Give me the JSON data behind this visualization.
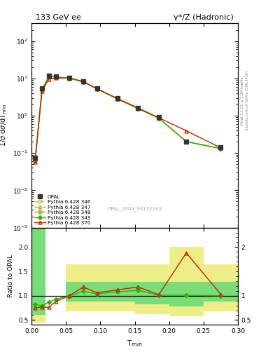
{
  "title_left": "133 GeV ee",
  "title_right": "γ*/Z (Hadronic)",
  "ylabel_main": "1/σ dσ/dT$_{min}$",
  "ylabel_ratio": "Ratio to OPAL",
  "xlabel": "T$_{min}$",
  "watermark": "OPAL_2004_S6132243",
  "right_label_top": "Rivet 3.1.10; ≥ 2.6M events",
  "right_label_bot": "mcplots.cern.ch [arXiv:1306.3436]",
  "opal_x": [
    0.005,
    0.015,
    0.025,
    0.035,
    0.055,
    0.075,
    0.095,
    0.125,
    0.155,
    0.185,
    0.225,
    0.275
  ],
  "opal_y": [
    0.075,
    5.5,
    12.0,
    11.5,
    10.5,
    8.5,
    5.5,
    3.0,
    1.6,
    0.9,
    0.2,
    0.14
  ],
  "mc346_x": [
    0.005,
    0.015,
    0.025,
    0.035,
    0.055,
    0.075,
    0.095,
    0.125,
    0.155,
    0.185,
    0.225,
    0.275
  ],
  "mc346_y": [
    0.065,
    5.0,
    11.5,
    11.0,
    10.2,
    8.2,
    5.3,
    2.85,
    1.58,
    0.87,
    0.205,
    0.133
  ],
  "mc347_x": [
    0.005,
    0.015,
    0.025,
    0.035,
    0.055,
    0.075,
    0.095,
    0.125,
    0.155,
    0.185,
    0.225,
    0.275
  ],
  "mc347_y": [
    0.063,
    4.95,
    11.4,
    10.95,
    10.15,
    8.15,
    5.25,
    2.82,
    1.56,
    0.86,
    0.203,
    0.132
  ],
  "mc348_x": [
    0.005,
    0.015,
    0.025,
    0.035,
    0.055,
    0.075,
    0.095,
    0.125,
    0.155,
    0.185,
    0.225,
    0.275
  ],
  "mc348_y": [
    0.063,
    4.95,
    11.4,
    10.95,
    10.15,
    8.15,
    5.25,
    2.82,
    1.56,
    0.86,
    0.203,
    0.132
  ],
  "mc349_x": [
    0.005,
    0.015,
    0.025,
    0.035,
    0.055,
    0.075,
    0.095,
    0.125,
    0.155,
    0.185,
    0.225,
    0.275
  ],
  "mc349_y": [
    0.062,
    4.9,
    11.35,
    10.9,
    10.1,
    8.1,
    5.22,
    2.8,
    1.55,
    0.855,
    0.202,
    0.131
  ],
  "mc370_x": [
    0.005,
    0.015,
    0.025,
    0.035,
    0.055,
    0.075,
    0.095,
    0.125,
    0.155,
    0.185,
    0.225,
    0.275
  ],
  "mc370_y": [
    0.057,
    4.5,
    9.6,
    10.2,
    10.3,
    8.3,
    5.35,
    2.88,
    1.62,
    0.88,
    0.395,
    0.138
  ],
  "ratio_x": [
    0.005,
    0.015,
    0.025,
    0.035,
    0.055,
    0.075,
    0.095,
    0.125,
    0.155,
    0.185,
    0.225,
    0.275
  ],
  "ratio_mc370": [
    0.75,
    0.77,
    0.76,
    0.88,
    1.0,
    1.18,
    1.06,
    1.12,
    1.18,
    1.02,
    1.88,
    1.03
  ],
  "ratio_mc349": [
    0.83,
    0.79,
    0.87,
    0.93,
    1.0,
    1.09,
    1.04,
    1.08,
    1.11,
    1.01,
    1.01,
    1.0
  ],
  "band_x_edges": [
    0.0,
    0.02,
    0.05,
    0.1,
    0.15,
    0.2,
    0.25,
    0.3
  ],
  "band_green_lo": [
    0.6,
    0.4,
    0.88,
    0.88,
    0.82,
    0.78,
    0.88,
    0.88
  ],
  "band_green_hi": [
    2.4,
    0.4,
    1.28,
    1.28,
    1.28,
    1.28,
    1.28,
    1.28
  ],
  "band_yellow_lo": [
    0.45,
    0.4,
    0.68,
    0.68,
    0.62,
    0.58,
    0.68,
    0.68
  ],
  "band_yellow_hi": [
    2.5,
    0.4,
    1.65,
    1.65,
    1.65,
    2.0,
    1.65,
    1.65
  ],
  "ylim_main": [
    0.001,
    300
  ],
  "ylim_ratio": [
    0.4,
    2.4
  ],
  "xlim": [
    0.0,
    0.3
  ],
  "color_opal": "#333333",
  "color_mc346": "#ccbb44",
  "color_mc347": "#aaaa22",
  "color_mc348": "#88aa00",
  "color_mc349": "#22bb00",
  "color_mc370": "#cc2200",
  "color_band_green": "#77dd77",
  "color_band_yellow": "#eeee88"
}
